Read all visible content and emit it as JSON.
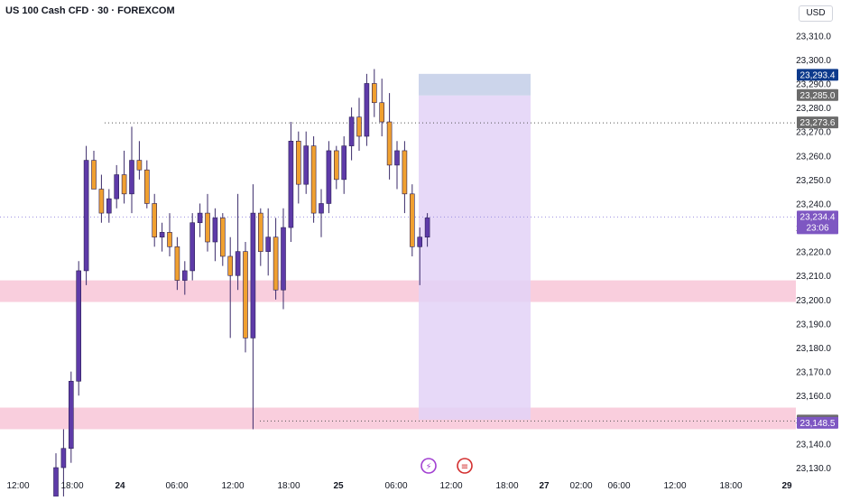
{
  "header": {
    "title": "US 100 Cash CFD · 30 · FOREXCOM",
    "currency": "USD"
  },
  "price_axis": {
    "ticks": [
      "23,310.0",
      "23,300.0",
      "23,290.0",
      "23,280.0",
      "23,270.0",
      "23,260.0",
      "23,250.0",
      "23,240.0",
      "23,230.0",
      "23,220.0",
      "23,210.0",
      "23,200.0",
      "23,190.0",
      "23,180.0",
      "23,170.0",
      "23,160.0",
      "23,150.0",
      "23,140.0",
      "23,130.0"
    ],
    "tick_values": [
      23310,
      23300,
      23290,
      23280,
      23270,
      23260,
      23250,
      23240,
      23230,
      23220,
      23210,
      23200,
      23190,
      23180,
      23170,
      23160,
      23150,
      23140,
      23130
    ]
  },
  "time_axis": {
    "labels": [
      "12:00",
      "18:00",
      "24",
      "06:00",
      "12:00",
      "18:00",
      "25",
      "06:00",
      "12:00",
      "18:00",
      "27",
      "02:00",
      "06:00",
      "12:00",
      "18:00",
      "29"
    ],
    "bold": [
      false,
      false,
      true,
      false,
      false,
      false,
      true,
      false,
      false,
      false,
      true,
      false,
      false,
      false,
      false,
      true
    ]
  },
  "price_badges": [
    {
      "label": "23,293.4",
      "value": 23293.4,
      "color": "#0d3a8c"
    },
    {
      "label": "23,285.0",
      "value": 23285.0,
      "color": "#6b6b6b"
    },
    {
      "label": "23,273.6",
      "value": 23273.6,
      "color": "#6b6b6b"
    },
    {
      "label": "23,234.4",
      "sub": "23:06",
      "value": 23234.4,
      "color": "#7e57c2"
    },
    {
      "label": "23,149.4",
      "value": 23149.4,
      "color": "#6b6b6b"
    },
    {
      "label": "23,148.5",
      "value": 23148.5,
      "color": "#7e57c2"
    }
  ],
  "zones": [
    {
      "name": "supply-zone",
      "from": 23199,
      "to": 23208,
      "color": "#f8c9d9"
    },
    {
      "name": "demand-zone",
      "from": 23146,
      "to": 23155,
      "color": "#f8c9d9"
    }
  ],
  "lines": [
    {
      "name": "high-level-line",
      "value": 23273.6,
      "style": "dotted",
      "color": "#555555"
    },
    {
      "name": "current-price-line",
      "value": 23234.4,
      "style": "dotted",
      "color": "#9c8fe0"
    },
    {
      "name": "low-level-line",
      "value": 23149.4,
      "style": "dotted",
      "color": "#555555"
    }
  ],
  "position_tool": {
    "top": 23294,
    "target": 23285,
    "bottom": 23150,
    "target_color": "#c9d3ea",
    "body_color": "#e3d2f7"
  },
  "events": [
    {
      "name": "flash-event-icon",
      "glyph": "⚡",
      "color": "#a13fd1"
    },
    {
      "name": "us-flag-event-icon",
      "glyph": "≡",
      "color": "#d32f2f"
    }
  ],
  "chart_data": {
    "type": "candlestick",
    "title": "US 100 Cash CFD · 30 · FOREXCOM",
    "ylabel": "USD",
    "ylim": [
      23127,
      23318
    ],
    "grid": false,
    "candles": [
      [
        23118,
        23136,
        23110,
        23130
      ],
      [
        23130,
        23146,
        23118,
        23138
      ],
      [
        23138,
        23170,
        23132,
        23166
      ],
      [
        23166,
        23216,
        23160,
        23212
      ],
      [
        23212,
        23264,
        23206,
        23258
      ],
      [
        23258,
        23262,
        23246,
        23246
      ],
      [
        23246,
        23252,
        23232,
        23236
      ],
      [
        23236,
        23246,
        23232,
        23242
      ],
      [
        23242,
        23256,
        23238,
        23252
      ],
      [
        23252,
        23262,
        23240,
        23244
      ],
      [
        23244,
        23272,
        23236,
        23258
      ],
      [
        23258,
        23266,
        23250,
        23254
      ],
      [
        23254,
        23258,
        23238,
        23240
      ],
      [
        23240,
        23244,
        23222,
        23226
      ],
      [
        23226,
        23232,
        23220,
        23228
      ],
      [
        23228,
        23236,
        23218,
        23222
      ],
      [
        23222,
        23226,
        23204,
        23208
      ],
      [
        23208,
        23216,
        23202,
        23212
      ],
      [
        23212,
        23236,
        23208,
        23232
      ],
      [
        23232,
        23240,
        23226,
        23236
      ],
      [
        23236,
        23244,
        23220,
        23224
      ],
      [
        23224,
        23238,
        23216,
        23234
      ],
      [
        23234,
        23236,
        23214,
        23218
      ],
      [
        23218,
        23226,
        23184,
        23210
      ],
      [
        23210,
        23244,
        23204,
        23220
      ],
      [
        23220,
        23224,
        23178,
        23184
      ],
      [
        23184,
        23248,
        23146,
        23236
      ],
      [
        23236,
        23238,
        23214,
        23220
      ],
      [
        23220,
        23238,
        23210,
        23226
      ],
      [
        23226,
        23234,
        23200,
        23204
      ],
      [
        23204,
        23238,
        23196,
        23230
      ],
      [
        23230,
        23274,
        23224,
        23266
      ],
      [
        23266,
        23270,
        23240,
        23248
      ],
      [
        23248,
        23270,
        23244,
        23264
      ],
      [
        23264,
        23268,
        23232,
        23236
      ],
      [
        23236,
        23246,
        23226,
        23240
      ],
      [
        23240,
        23266,
        23236,
        23262
      ],
      [
        23262,
        23264,
        23246,
        23250
      ],
      [
        23250,
        23268,
        23244,
        23264
      ],
      [
        23264,
        23280,
        23258,
        23276
      ],
      [
        23276,
        23284,
        23262,
        23268
      ],
      [
        23268,
        23294,
        23264,
        23290
      ],
      [
        23290,
        23296,
        23276,
        23282
      ],
      [
        23282,
        23292,
        23268,
        23274
      ],
      [
        23274,
        23286,
        23250,
        23256
      ],
      [
        23256,
        23266,
        23246,
        23262
      ],
      [
        23262,
        23266,
        23236,
        23244
      ],
      [
        23244,
        23248,
        23218,
        23222
      ],
      [
        23222,
        23230,
        23206,
        23226
      ],
      [
        23226,
        23236,
        23222,
        23234
      ]
    ]
  }
}
